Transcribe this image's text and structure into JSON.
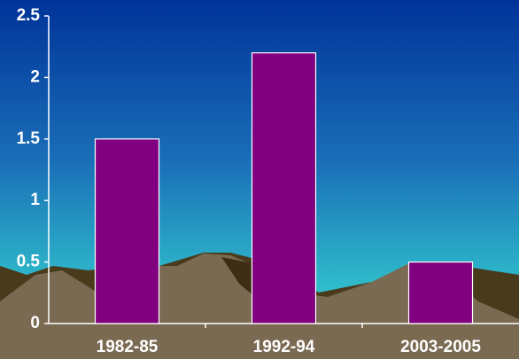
{
  "chart_data": {
    "type": "bar",
    "categories": [
      "1982-85",
      "1992-94",
      "2003-2005"
    ],
    "values": [
      1.5,
      2.2,
      0.5
    ],
    "color": "#800080",
    "ylim": [
      0,
      2.5
    ],
    "yticks": [
      0,
      0.5,
      1,
      1.5,
      2,
      2.5
    ]
  }
}
